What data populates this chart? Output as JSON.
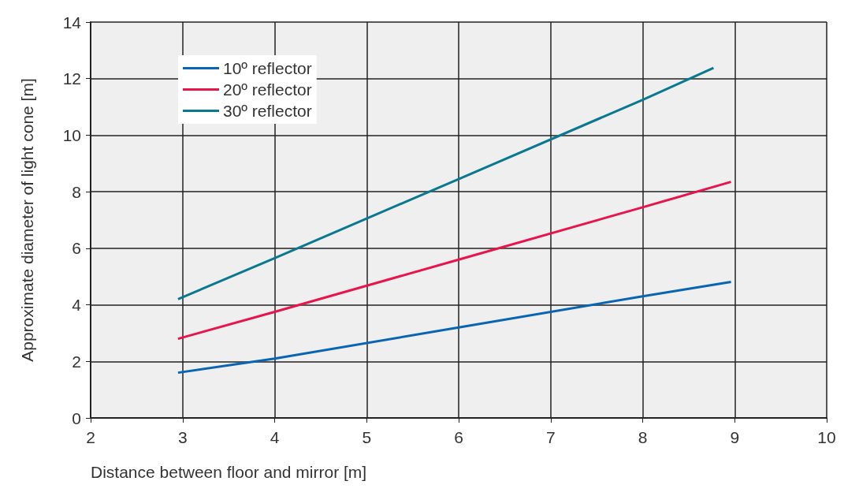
{
  "chart_data": {
    "type": "line",
    "xlabel": "Distance between floor and mirror [m]",
    "ylabel": "Approximate diameter of light cone [m]",
    "xlim": [
      2,
      10
    ],
    "xticks": [
      2,
      3,
      4,
      5,
      6,
      7,
      8,
      9,
      10
    ],
    "ylim": [
      0,
      14
    ],
    "yticks": [
      0,
      2,
      4,
      6,
      8,
      10,
      12,
      14
    ],
    "grid": true,
    "legend": "top left",
    "marker": "none",
    "line_style": "solid",
    "series": [
      {
        "name": "10º reflector",
        "color": "#0a64b4",
        "x": [
          2.95,
          4,
          6,
          8,
          8.96
        ],
        "values": [
          1.6,
          2.1,
          3.2,
          4.3,
          4.81
        ]
      },
      {
        "name": "20º reflector",
        "color": "#e8144c",
        "x": [
          2.95,
          4,
          6,
          8,
          8.96
        ],
        "values": [
          2.8,
          3.75,
          5.6,
          7.45,
          8.35
        ]
      },
      {
        "name": "30º reflector",
        "color": "#0a7890",
        "x": [
          2.95,
          4,
          6,
          8,
          8.77
        ],
        "values": [
          4.2,
          5.65,
          8.45,
          11.25,
          12.38
        ]
      }
    ]
  }
}
